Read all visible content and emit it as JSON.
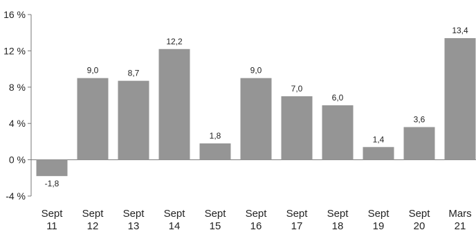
{
  "chart_data": {
    "type": "bar",
    "categories": [
      [
        "Sept",
        "11"
      ],
      [
        "Sept",
        "12"
      ],
      [
        "Sept",
        "13"
      ],
      [
        "Sept",
        "14"
      ],
      [
        "Sept",
        "15"
      ],
      [
        "Sept",
        "16"
      ],
      [
        "Sept",
        "17"
      ],
      [
        "Sept",
        "18"
      ],
      [
        "Sept",
        "19"
      ],
      [
        "Sept",
        "20"
      ],
      [
        "Mars",
        "21"
      ]
    ],
    "values": [
      -1.8,
      9.0,
      8.7,
      12.2,
      1.8,
      9.0,
      7.0,
      6.0,
      1.4,
      3.6,
      13.4
    ],
    "value_labels": [
      "-1,8",
      "9,0",
      "8,7",
      "12,2",
      "1,8",
      "9,0",
      "7,0",
      "6,0",
      "1,4",
      "3,6",
      "13,4"
    ],
    "yticks": [
      16,
      12,
      8,
      4,
      0,
      -4
    ],
    "ytick_labels": [
      "16 %",
      "12 %",
      "8 %",
      "4 %",
      "0 %",
      "-4 %"
    ],
    "ylim": [
      -4,
      16
    ],
    "grid": false,
    "colors": {
      "bar": "#959595",
      "axis": "#777777",
      "text": "#222222"
    },
    "title": "",
    "xlabel": "",
    "ylabel": ""
  }
}
